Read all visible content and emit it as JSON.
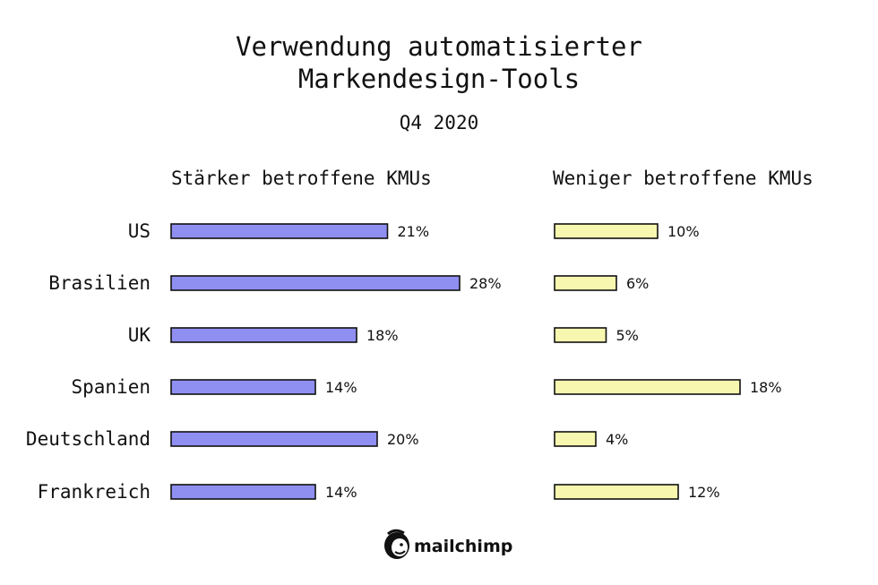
{
  "title_line1": "Verwendung automatisierter",
  "title_line2": "Markendesign-Tools",
  "subtitle": "Q4 2020",
  "brand": "mailchimp",
  "colors": {
    "left_fill": "#8f8ff2",
    "right_fill": "#f7f7b0",
    "stroke": "#111111",
    "text": "#111111"
  },
  "chart_data": {
    "type": "bar",
    "orientation": "horizontal",
    "categories": [
      "US",
      "Brasilien",
      "UK",
      "Spanien",
      "Deutschland",
      "Frankreich"
    ],
    "series": [
      {
        "name": "Stärker betroffene KMUs",
        "values": [
          21,
          28,
          18,
          14,
          20,
          14
        ],
        "labels": [
          "21%",
          "28%",
          "18%",
          "14%",
          "20%",
          "14%"
        ]
      },
      {
        "name": "Weniger betroffene KMUs",
        "values": [
          10,
          6,
          5,
          18,
          4,
          12
        ],
        "labels": [
          "10%",
          "6%",
          "5%",
          "18%",
          "4%",
          "12%"
        ]
      }
    ],
    "unit": "%",
    "grid": false,
    "legend": "panel titles above each panel"
  }
}
